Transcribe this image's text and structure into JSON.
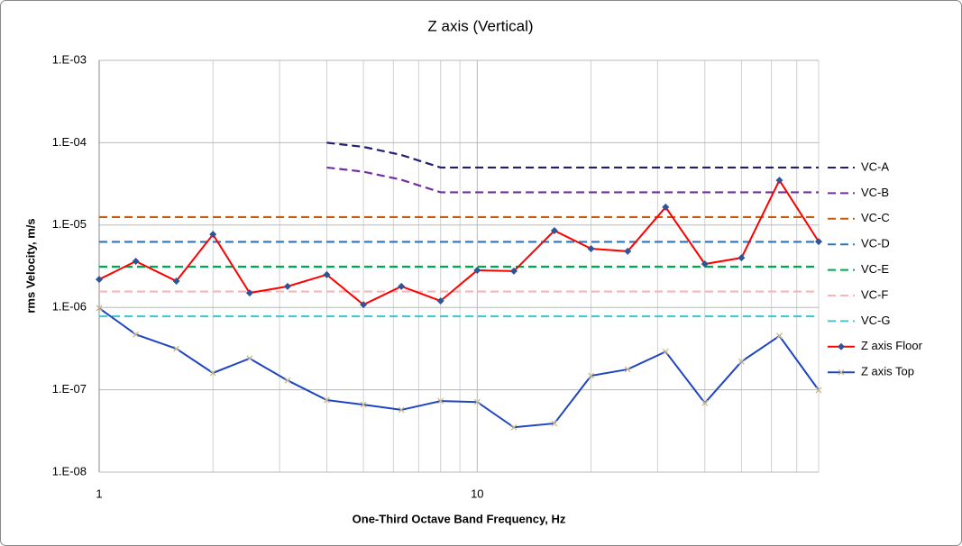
{
  "chart_data": {
    "type": "line",
    "title": "Z axis (Vertical)",
    "x_label": "One-Third Octave Band Frequency, Hz",
    "y_label": "rms Velocity, m/s",
    "x": [
      1,
      1.25,
      1.6,
      2,
      2.5,
      3.15,
      4,
      5,
      6.3,
      8,
      10,
      12.5,
      16,
      20,
      25,
      31.5,
      40,
      50,
      63,
      80
    ],
    "xlim": [
      1,
      80
    ],
    "xticks": [
      1,
      10
    ],
    "xgrid": [
      2,
      3,
      4,
      5,
      6,
      7,
      8,
      9,
      20,
      30,
      40,
      50,
      60,
      70,
      80
    ],
    "ylim": [
      1e-08,
      0.001
    ],
    "yticks": [
      {
        "value": 1e-08,
        "label": "1.E-08"
      },
      {
        "value": 1e-07,
        "label": "1.E-07"
      },
      {
        "value": 1e-06,
        "label": "1.E-06"
      },
      {
        "value": 1e-05,
        "label": "1.E-05"
      },
      {
        "value": 0.0001,
        "label": "1.E-04"
      },
      {
        "value": 0.001,
        "label": "1.E-03"
      }
    ],
    "x_log": true,
    "y_log": true,
    "grid": true,
    "legend": "right",
    "series": [
      {
        "name": "VC-A",
        "color": "#1f1f6e",
        "dash": true,
        "values": [
          null,
          null,
          null,
          null,
          null,
          null,
          0.0001,
          8.9e-05,
          7.1e-05,
          5e-05,
          5e-05,
          5e-05,
          5e-05,
          5e-05,
          5e-05,
          5e-05,
          5e-05,
          5e-05,
          5e-05,
          5e-05
        ]
      },
      {
        "name": "VC-B",
        "color": "#7030a0",
        "dash": true,
        "values": [
          null,
          null,
          null,
          null,
          null,
          null,
          5e-05,
          4.45e-05,
          3.55e-05,
          2.5e-05,
          2.5e-05,
          2.5e-05,
          2.5e-05,
          2.5e-05,
          2.5e-05,
          2.5e-05,
          2.5e-05,
          2.5e-05,
          2.5e-05,
          2.5e-05
        ]
      },
      {
        "name": "VC-C",
        "color": "#c55a11",
        "dash": true,
        "values": [
          1.25e-05,
          1.25e-05,
          1.25e-05,
          1.25e-05,
          1.25e-05,
          1.25e-05,
          1.25e-05,
          1.25e-05,
          1.25e-05,
          1.25e-05,
          1.25e-05,
          1.25e-05,
          1.25e-05,
          1.25e-05,
          1.25e-05,
          1.25e-05,
          1.25e-05,
          1.25e-05,
          1.25e-05,
          1.25e-05
        ]
      },
      {
        "name": "VC-D",
        "color": "#2e75b6",
        "dash": true,
        "values": [
          6.25e-06,
          6.25e-06,
          6.25e-06,
          6.25e-06,
          6.25e-06,
          6.25e-06,
          6.25e-06,
          6.25e-06,
          6.25e-06,
          6.25e-06,
          6.25e-06,
          6.25e-06,
          6.25e-06,
          6.25e-06,
          6.25e-06,
          6.25e-06,
          6.25e-06,
          6.25e-06,
          6.25e-06,
          6.25e-06
        ]
      },
      {
        "name": "VC-E",
        "color": "#00a650",
        "dash": true,
        "values": [
          3.12e-06,
          3.12e-06,
          3.12e-06,
          3.12e-06,
          3.12e-06,
          3.12e-06,
          3.12e-06,
          3.12e-06,
          3.12e-06,
          3.12e-06,
          3.12e-06,
          3.12e-06,
          3.12e-06,
          3.12e-06,
          3.12e-06,
          3.12e-06,
          3.12e-06,
          3.12e-06,
          3.12e-06,
          3.12e-06
        ]
      },
      {
        "name": "VC-F",
        "color": "#f4b6b6",
        "dash": true,
        "values": [
          1.56e-06,
          1.56e-06,
          1.56e-06,
          1.56e-06,
          1.56e-06,
          1.56e-06,
          1.56e-06,
          1.56e-06,
          1.56e-06,
          1.56e-06,
          1.56e-06,
          1.56e-06,
          1.56e-06,
          1.56e-06,
          1.56e-06,
          1.56e-06,
          1.56e-06,
          1.56e-06,
          1.56e-06,
          1.56e-06
        ]
      },
      {
        "name": "VC-G",
        "color": "#4bc6d0",
        "dash": true,
        "values": [
          7.8e-07,
          7.8e-07,
          7.8e-07,
          7.8e-07,
          7.8e-07,
          7.8e-07,
          7.8e-07,
          7.8e-07,
          7.8e-07,
          7.8e-07,
          7.8e-07,
          7.8e-07,
          7.8e-07,
          7.8e-07,
          7.8e-07,
          7.8e-07,
          7.8e-07,
          7.8e-07,
          7.8e-07,
          7.8e-07
        ]
      },
      {
        "name": "Z axis Floor",
        "color": "#ff0000",
        "marker": "diamond",
        "marker_color": "#2f5597",
        "values": [
          2.19e-06,
          3.63e-06,
          2.09e-06,
          7.7e-06,
          1.5e-06,
          1.8e-06,
          2.5e-06,
          1.08e-06,
          1.8e-06,
          1.2e-06,
          2.82e-06,
          2.76e-06,
          8.55e-06,
          5.17e-06,
          4.8e-06,
          1.65e-05,
          3.37e-06,
          4e-06,
          3.5e-05,
          6.3e-06
        ]
      },
      {
        "name": "Z axis Top",
        "color": "#1f45c0",
        "marker": "x",
        "marker_color": "#c9b98a",
        "values": [
          9.8e-07,
          4.7e-07,
          3.15e-07,
          1.6e-07,
          2.4e-07,
          1.3e-07,
          7.5e-08,
          6.6e-08,
          5.7e-08,
          7.3e-08,
          7.1e-08,
          3.5e-08,
          3.9e-08,
          1.48e-07,
          1.77e-07,
          2.9e-07,
          6.9e-08,
          2.2e-07,
          4.5e-07,
          9.9e-08
        ]
      }
    ]
  }
}
